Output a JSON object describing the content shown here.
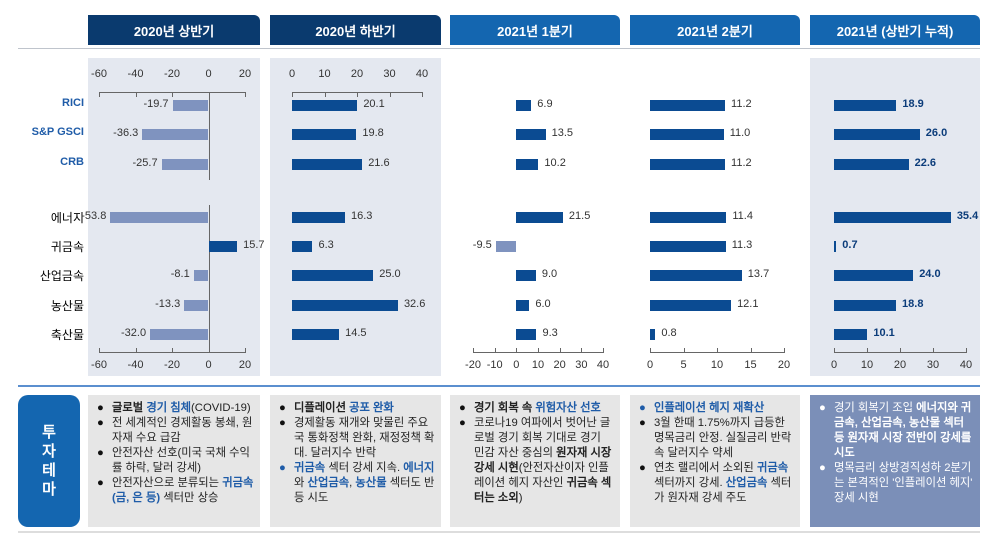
{
  "colors": {
    "header_dark": "#0a3a6e",
    "header_light": "#1466b0",
    "bar_positive": "#0b4b92",
    "bar_negative": "#7f93bf",
    "label_box": "#1466b0"
  },
  "chart_data": {
    "type": "bar",
    "orientation": "horizontal",
    "categories": [
      "RICI",
      "S&P GSCI",
      "CRB",
      "에너지",
      "귀금속",
      "산업금속",
      "농산물",
      "축산물"
    ],
    "panels": [
      {
        "title": "2020년 상반기",
        "xlim": [
          -60,
          20
        ],
        "ticks": [
          -60,
          -40,
          -20,
          0,
          20
        ],
        "values": [
          -19.7,
          -36.3,
          -25.7,
          -53.8,
          15.7,
          -8.1,
          -13.3,
          -32.0
        ],
        "labels": [
          "-19.7",
          "-36.3",
          "-25.7",
          "-53.8",
          "15.7",
          "-8.1",
          "-13.3",
          "-32.0"
        ]
      },
      {
        "title": "2020년 하반기",
        "xlim": [
          0,
          40
        ],
        "ticks": [
          0,
          10,
          20,
          30,
          40
        ],
        "values": [
          20.1,
          19.8,
          21.6,
          16.3,
          6.3,
          25.0,
          32.6,
          14.5
        ],
        "labels": [
          "20.1",
          "19.8",
          "21.6",
          "16.3",
          "6.3",
          "25.0",
          "32.6",
          "14.5"
        ]
      },
      {
        "title": "2021년 1분기",
        "xlim": [
          -20,
          40
        ],
        "ticks": [
          -20,
          -10,
          0,
          10,
          20,
          30,
          40
        ],
        "values": [
          6.9,
          13.5,
          10.2,
          21.5,
          -9.5,
          9.0,
          6.0,
          9.3
        ],
        "labels": [
          "6.9",
          "13.5",
          "10.2",
          "21.5",
          "-9.5",
          "9.0",
          "6.0",
          "9.3"
        ]
      },
      {
        "title": "2021년 2분기",
        "xlim": [
          0,
          20
        ],
        "ticks": [
          0,
          5,
          10,
          15,
          20
        ],
        "values": [
          11.2,
          11.0,
          11.2,
          11.4,
          11.3,
          13.7,
          12.1,
          0.8
        ],
        "labels": [
          "11.2",
          "11.0",
          "11.2",
          "11.4",
          "11.3",
          "13.7",
          "12.1",
          "0.8"
        ]
      },
      {
        "title": "2021년 (상반기 누적)",
        "xlim": [
          0,
          40
        ],
        "ticks": [
          0,
          10,
          20,
          30,
          40
        ],
        "values": [
          18.9,
          26.0,
          22.6,
          35.4,
          0.7,
          24.0,
          18.8,
          10.1
        ],
        "labels": [
          "18.9",
          "26.0",
          "22.6",
          "35.4",
          "0.7",
          "24.0",
          "18.8",
          "10.1"
        ]
      }
    ]
  },
  "theme": {
    "label_chars": [
      "투",
      "자",
      "테",
      "마"
    ],
    "boxes": [
      {
        "items": [
          {
            "bullet": "●",
            "blue": false,
            "segs": [
              {
                "t": "글로벌 ",
                "s": "b"
              },
              {
                "t": "경기 침체",
                "s": "hb"
              },
              {
                "t": "(COVID-19)",
                "s": ""
              }
            ]
          },
          {
            "bullet": "●",
            "blue": false,
            "segs": [
              {
                "t": "전 세계적인 경제활동 봉쇄, 원자재 수요 급감",
                "s": ""
              }
            ]
          },
          {
            "bullet": "●",
            "blue": false,
            "segs": [
              {
                "t": "안전자산 선호(미국 국채 수익률 하락, 달러 강세)",
                "s": ""
              }
            ]
          },
          {
            "bullet": "●",
            "blue": false,
            "segs": [
              {
                "t": "안전자산으로 분류되는 ",
                "s": ""
              },
              {
                "t": "귀금속(금, 은 등)",
                "s": "hb"
              },
              {
                "t": " 섹터만 상승",
                "s": ""
              }
            ]
          }
        ]
      },
      {
        "items": [
          {
            "bullet": "●",
            "blue": false,
            "segs": [
              {
                "t": "디플레이션 ",
                "s": "b"
              },
              {
                "t": "공포 완화",
                "s": "hb"
              }
            ]
          },
          {
            "bullet": "●",
            "blue": false,
            "segs": [
              {
                "t": "경제활동 재개와 맞물린 주요국 통화정책 완화, 재정정책 확대. 달러지수 반락",
                "s": ""
              }
            ]
          },
          {
            "bullet": "●",
            "blue": true,
            "segs": [
              {
                "t": "귀금속",
                "s": "hb"
              },
              {
                "t": " 섹터 강세 지속. ",
                "s": ""
              },
              {
                "t": "에너지",
                "s": "hb"
              },
              {
                "t": "와 ",
                "s": ""
              },
              {
                "t": "산업금속",
                "s": "hb"
              },
              {
                "t": ", ",
                "s": ""
              },
              {
                "t": "농산물",
                "s": "hb"
              },
              {
                "t": " 섹터도 반등 시도",
                "s": ""
              }
            ]
          }
        ]
      },
      {
        "items": [
          {
            "bullet": "●",
            "blue": false,
            "segs": [
              {
                "t": "경기 회복 속 ",
                "s": "b"
              },
              {
                "t": "위험자산 선호",
                "s": "hb"
              }
            ]
          },
          {
            "bullet": "●",
            "blue": false,
            "segs": [
              {
                "t": "코로나19 여파에서 벗어난 글로벌 경기 회복 기대로 경기 민감 자산 중심의 ",
                "s": ""
              },
              {
                "t": "원자재 시장 강세 시현",
                "s": "b"
              },
              {
                "t": "(안전자산이자 인플레이션 헤지 자산인 ",
                "s": ""
              },
              {
                "t": "귀금속 섹터는 소외",
                "s": "b"
              },
              {
                "t": ")",
                "s": ""
              }
            ]
          }
        ]
      },
      {
        "items": [
          {
            "bullet": "●",
            "blue": true,
            "segs": [
              {
                "t": "인플레이션 헤지 재확산",
                "s": "hb"
              }
            ]
          },
          {
            "bullet": "●",
            "blue": false,
            "segs": [
              {
                "t": "3월 한때 1.75%까지 급등한 명목금리 안정. 실질금리 반락 속 달러지수 약세",
                "s": ""
              }
            ]
          },
          {
            "bullet": "●",
            "blue": false,
            "segs": [
              {
                "t": "연초 랠리에서 소외된 ",
                "s": ""
              },
              {
                "t": "귀금속",
                "s": "hb"
              },
              {
                "t": " 섹터까지 강세. ",
                "s": ""
              },
              {
                "t": "산업금속",
                "s": "hb"
              },
              {
                "t": " 섹터가 원자재 강세 주도",
                "s": ""
              }
            ]
          }
        ]
      },
      {
        "items": [
          {
            "bullet": "●",
            "blue": false,
            "segs": [
              {
                "t": "경기 회복기 조입 ",
                "s": ""
              },
              {
                "t": "에너지와 귀금속, 산업금속, 농산물 섹터 등 원자재 시장 전반이 강세를 시도",
                "s": "b"
              }
            ]
          },
          {
            "bullet": "●",
            "blue": false,
            "segs": [
              {
                "t": "명목금리 상방경직성하 2분기는 본격적인 '인플레이션 헤지' 장세 시현",
                "s": ""
              }
            ]
          }
        ]
      }
    ]
  }
}
